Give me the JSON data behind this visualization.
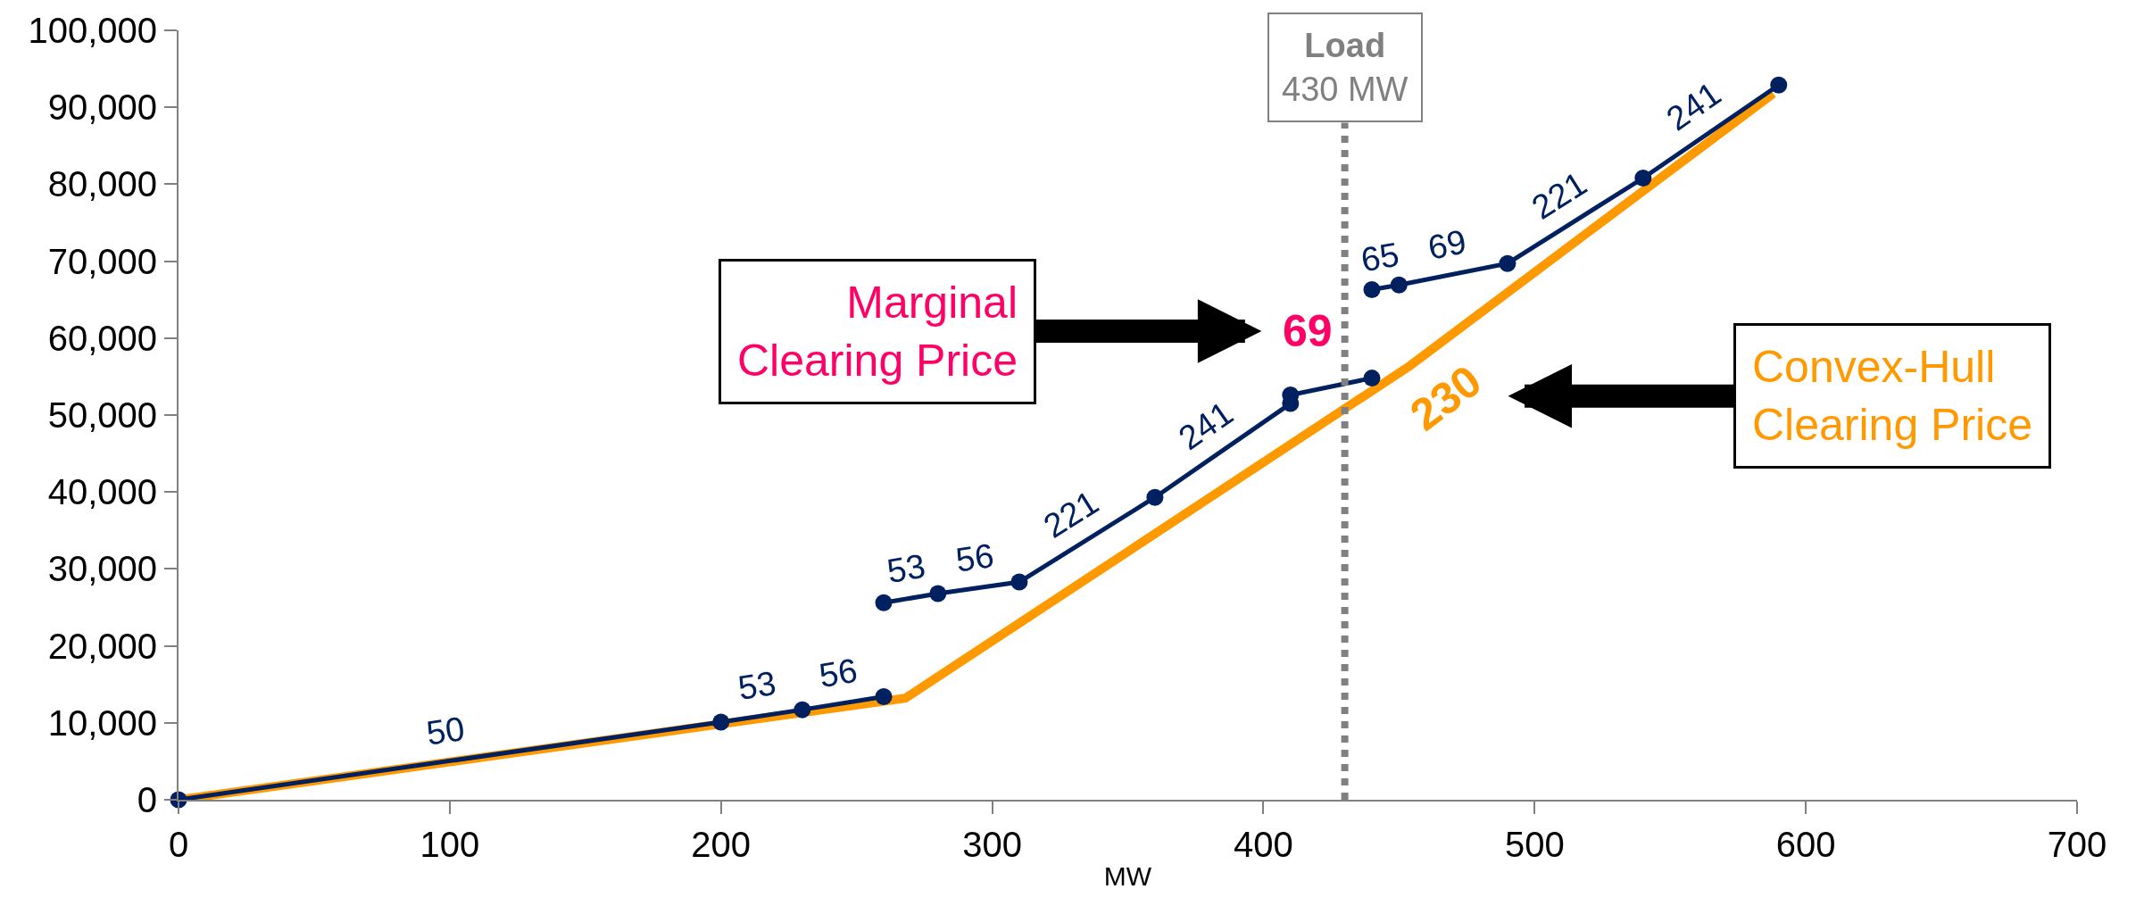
{
  "chart_data": {
    "type": "line",
    "xlabel": "MW",
    "series": [
      {
        "color": "#ff9900",
        "x": [
          0,
          268,
          454,
          588
        ],
        "values": [
          0,
          13200,
          56400,
          91800
        ],
        "marker": "none"
      },
      {
        "color": "#002060",
        "x": [
          0,
          200,
          230,
          260
        ],
        "values": [
          0,
          10100,
          11700,
          13400
        ]
      },
      {
        "color": "#002060",
        "x": [
          260,
          280,
          310,
          360,
          410,
          410,
          440
        ],
        "values": [
          25600,
          26800,
          28300,
          39300,
          51500,
          52600,
          54800
        ]
      },
      {
        "color": "#002060",
        "x": [
          440,
          450,
          490,
          540,
          590
        ],
        "values": [
          66300,
          66900,
          69700,
          80800,
          92900
        ]
      }
    ],
    "marker": "circle",
    "xlim": [
      0,
      700
    ],
    "xticks": [
      0,
      100,
      200,
      300,
      400,
      500,
      600,
      700
    ],
    "ylim": [
      0,
      100000
    ],
    "yticks": [
      {
        "value": 0,
        "label": "0"
      },
      {
        "value": 10000,
        "label": "10,000"
      },
      {
        "value": 20000,
        "label": "20,000"
      },
      {
        "value": 30000,
        "label": "30,000"
      },
      {
        "value": 40000,
        "label": "40,000"
      },
      {
        "value": 50000,
        "label": "50,000"
      },
      {
        "value": 60000,
        "label": "60,000"
      },
      {
        "value": 70000,
        "label": "70,000"
      },
      {
        "value": 80000,
        "label": "80,000"
      },
      {
        "value": 90000,
        "label": "90,000"
      },
      {
        "value": 100000,
        "label": "100,000"
      }
    ],
    "ref_lines": [
      {
        "axis": "x",
        "value": 430,
        "label": "Load\n430 MW",
        "color": "#808080",
        "line_style": "dotted"
      }
    ],
    "annotations": [
      "50",
      "53",
      "56",
      "53",
      "56",
      "221",
      "241",
      "69",
      "65",
      "69",
      "221",
      "241",
      "230",
      "Marginal\nClearing Price",
      "Convex-Hull\nClearing Price"
    ]
  }
}
